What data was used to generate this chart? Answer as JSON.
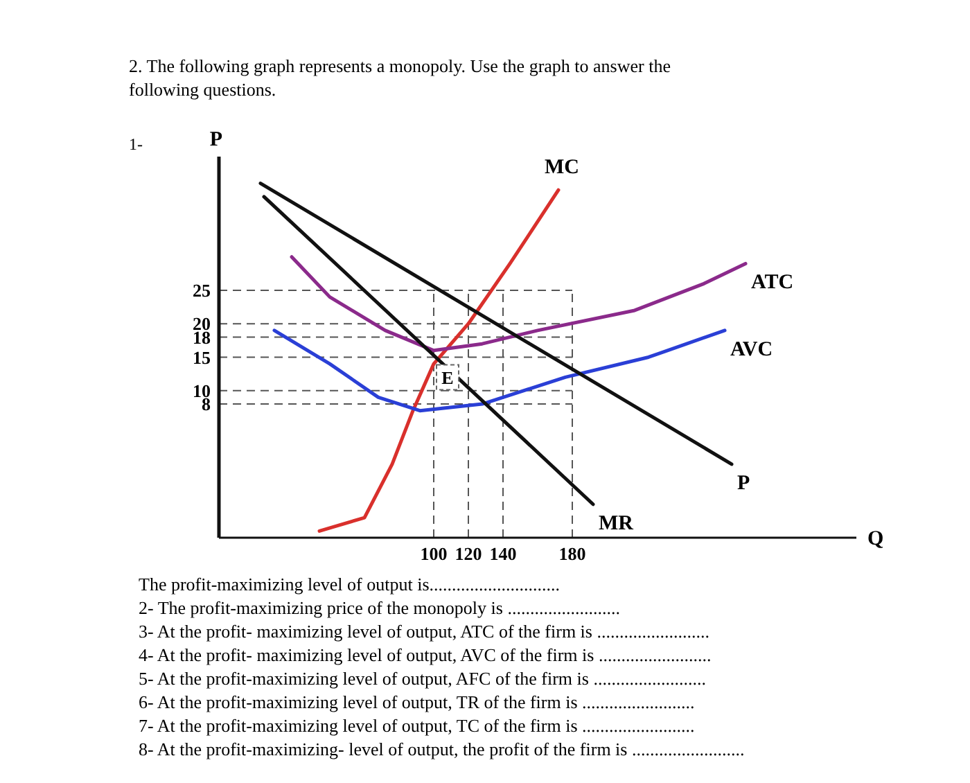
{
  "chart_data": {
    "type": "line",
    "title": "2. The following graph represents a monopoly. Use the graph to answer the following questions.",
    "xlabel": "Q",
    "ylabel": "P",
    "xlim": [
      -24,
      344
    ],
    "ylim": [
      -12,
      45
    ],
    "xticks": [
      100,
      120,
      140,
      180
    ],
    "yticks": [
      8,
      10,
      15,
      18,
      20,
      25
    ],
    "tick_labels": "xy",
    "series": [
      {
        "name": "MC",
        "color": "#d9302c",
        "x": [
          34,
          60,
          76,
          88,
          100,
          120,
          144,
          172
        ],
        "values": [
          -11,
          -9,
          -1,
          7,
          14,
          20,
          29,
          40
        ]
      },
      {
        "name": "ATC",
        "color": "#8b2a8b",
        "x": [
          18,
          40,
          72,
          100,
          128,
          160,
          216,
          256,
          280
        ],
        "values": [
          30,
          24,
          19,
          16,
          17,
          19,
          22,
          26,
          29
        ]
      },
      {
        "name": "AVC",
        "color": "#2a3fd6",
        "x": [
          8,
          40,
          68,
          92,
          128,
          176,
          224,
          268
        ],
        "values": [
          19,
          14,
          9,
          7,
          8,
          12,
          15,
          19
        ]
      },
      {
        "name": "P",
        "color": "#111111",
        "x": [
          0,
          272
        ],
        "values": [
          41,
          -1
        ]
      },
      {
        "name": "MR",
        "color": "#111111",
        "x": [
          2,
          192
        ],
        "values": [
          39,
          -7
        ]
      }
    ],
    "ref_lines": [
      {
        "axis": "y",
        "value": 25,
        "line_style": "dashed"
      },
      {
        "axis": "y",
        "value": 20,
        "line_style": "dashed"
      },
      {
        "axis": "y",
        "value": 18,
        "line_style": "dashed"
      },
      {
        "axis": "y",
        "value": 15,
        "line_style": "dashed"
      },
      {
        "axis": "y",
        "value": 10,
        "line_style": "dashed"
      },
      {
        "axis": "y",
        "value": 8,
        "line_style": "dashed"
      },
      {
        "axis": "x",
        "value": 100,
        "line_style": "dashed"
      },
      {
        "axis": "x",
        "value": 120,
        "line_style": "dashed"
      },
      {
        "axis": "x",
        "value": 140,
        "line_style": "dashed"
      },
      {
        "axis": "x",
        "value": 180,
        "line_style": "dashed"
      }
    ],
    "annotations": [
      "1-",
      {
        "text": "E",
        "x": 108,
        "y": 12
      },
      "The profit-maximizing level of output is.............................",
      "2- The profit-maximizing price of the monopoly is .........................",
      "3- At the profit- maximizing level of output,  ATC of the firm is .........................",
      "4- At the profit- maximizing level of output, AVC of the firm is .........................",
      "5- At the profit-maximizing level of output, AFC of the firm is .........................",
      "6- At the profit-maximizing level of output, TR of the firm is .........................",
      "7- At the profit-maximizing level of output, TC of the firm is .........................",
      "8- At the profit-maximizing- level of output, the profit of the firm is ........................."
    ],
    "line_style": "solid",
    "marker": "none"
  }
}
